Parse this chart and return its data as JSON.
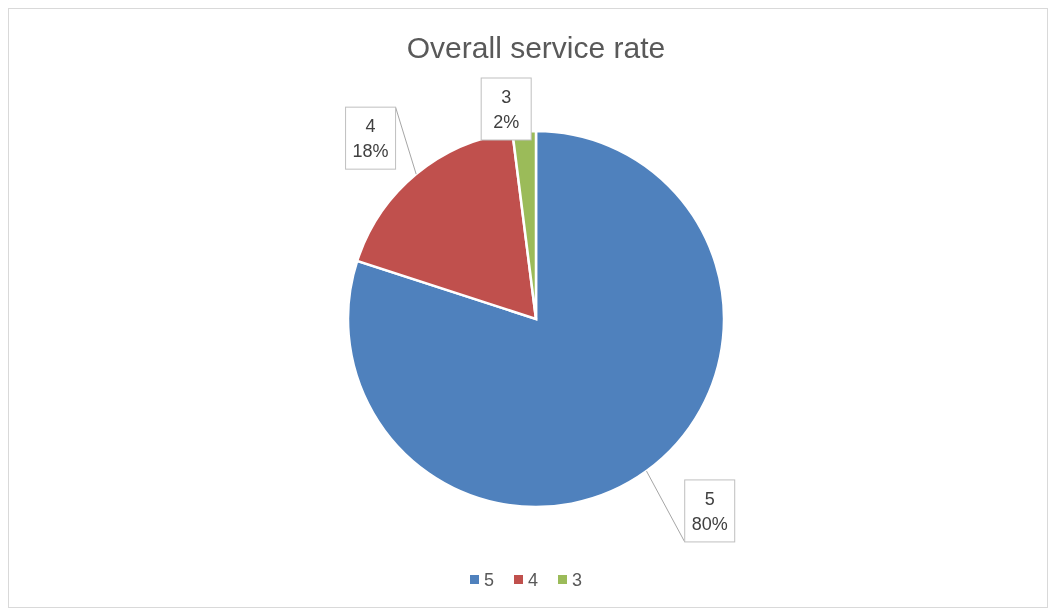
{
  "chart_data": {
    "type": "pie",
    "title": "Overall service rate",
    "categories": [
      "5",
      "4",
      "3"
    ],
    "values": [
      80,
      18,
      2
    ],
    "colors": [
      "#4f81bd",
      "#c0504d",
      "#9bbb59"
    ],
    "value_labels": [
      "80%",
      "18%",
      "2%"
    ],
    "legend": "bottom"
  }
}
